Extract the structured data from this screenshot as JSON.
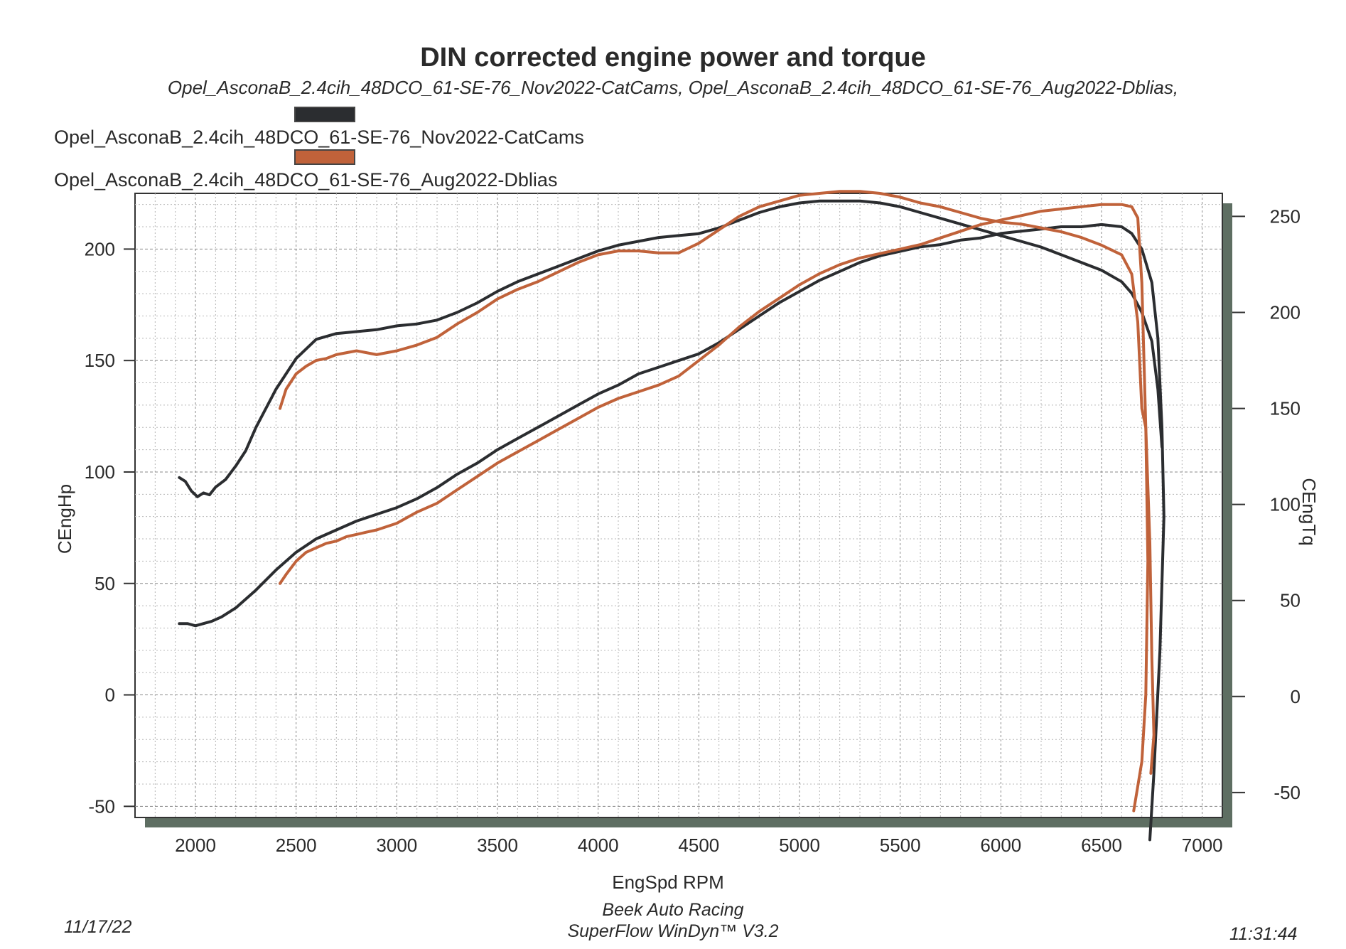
{
  "title": "DIN corrected engine power and torque",
  "subtitle": "Opel_AsconaB_2.4cih_48DCO_61-SE-76_Nov2022-CatCams, Opel_AsconaB_2.4cih_48DCO_61-SE-76_Aug2022-Dblias,",
  "legend": [
    {
      "label": "Opel_AsconaB_2.4cih_48DCO_61-SE-76_Nov2022-CatCams",
      "color": "#2b2d30"
    },
    {
      "label": "Opel_AsconaB_2.4cih_48DCO_61-SE-76_Aug2022-Dblias",
      "color": "#c0623a"
    }
  ],
  "footer": {
    "date": "11/17/22",
    "company": "Beek Auto Racing",
    "software": "SuperFlow WinDyn™ V3.2",
    "time": "11:31:44"
  },
  "chart_data": {
    "type": "line",
    "title": "DIN corrected engine power and torque",
    "xlabel": "EngSpd RPM",
    "ylabel": "CEngHp",
    "y2label": "CEngTq",
    "xlim": [
      1700,
      7100
    ],
    "ylim": [
      -55,
      225
    ],
    "y2lim": [
      -63,
      262
    ],
    "xticks": [
      2000,
      2500,
      3000,
      3500,
      4000,
      4500,
      5000,
      5500,
      6000,
      6500,
      7000
    ],
    "yticks": [
      -50,
      0,
      50,
      100,
      150,
      200
    ],
    "y2ticks": [
      -50,
      0,
      50,
      100,
      150,
      200,
      250
    ],
    "grid": true,
    "series": [
      {
        "name": "Opel_AsconaB_2.4cih_48DCO_61-SE-76_Nov2022-CatCams",
        "quantity": "CEngHp",
        "axis": "left",
        "color": "#2b2d30",
        "points": [
          [
            1920,
            32
          ],
          [
            1960,
            32
          ],
          [
            2000,
            31
          ],
          [
            2040,
            32
          ],
          [
            2080,
            33
          ],
          [
            2130,
            35
          ],
          [
            2200,
            39
          ],
          [
            2300,
            47
          ],
          [
            2400,
            56
          ],
          [
            2500,
            64
          ],
          [
            2600,
            70
          ],
          [
            2700,
            74
          ],
          [
            2800,
            78
          ],
          [
            2900,
            81
          ],
          [
            3000,
            84
          ],
          [
            3100,
            88
          ],
          [
            3200,
            93
          ],
          [
            3300,
            99
          ],
          [
            3400,
            104
          ],
          [
            3500,
            110
          ],
          [
            3600,
            115
          ],
          [
            3700,
            120
          ],
          [
            3800,
            125
          ],
          [
            3900,
            130
          ],
          [
            4000,
            135
          ],
          [
            4100,
            139
          ],
          [
            4200,
            144
          ],
          [
            4300,
            147
          ],
          [
            4400,
            150
          ],
          [
            4500,
            153
          ],
          [
            4600,
            158
          ],
          [
            4700,
            164
          ],
          [
            4800,
            170
          ],
          [
            4900,
            176
          ],
          [
            5000,
            181
          ],
          [
            5100,
            186
          ],
          [
            5200,
            190
          ],
          [
            5300,
            194
          ],
          [
            5400,
            197
          ],
          [
            5500,
            199
          ],
          [
            5600,
            201
          ],
          [
            5700,
            202
          ],
          [
            5800,
            204
          ],
          [
            5900,
            205
          ],
          [
            6000,
            207
          ],
          [
            6100,
            208
          ],
          [
            6200,
            209
          ],
          [
            6300,
            210
          ],
          [
            6400,
            210
          ],
          [
            6500,
            211
          ],
          [
            6600,
            210
          ],
          [
            6650,
            207
          ],
          [
            6700,
            200
          ],
          [
            6750,
            185
          ],
          [
            6780,
            160
          ],
          [
            6800,
            120
          ],
          [
            6810,
            80
          ],
          [
            6790,
            20
          ],
          [
            6760,
            -35
          ],
          [
            6740,
            -65
          ]
        ]
      },
      {
        "name": "Opel_AsconaB_2.4cih_48DCO_61-SE-76_Nov2022-CatCams",
        "quantity": "CEngTq",
        "axis": "right",
        "color": "#2b2d30",
        "points": [
          [
            1920,
            114
          ],
          [
            1950,
            112
          ],
          [
            1980,
            107
          ],
          [
            2010,
            104
          ],
          [
            2040,
            106
          ],
          [
            2070,
            105
          ],
          [
            2100,
            109
          ],
          [
            2150,
            113
          ],
          [
            2200,
            120
          ],
          [
            2250,
            128
          ],
          [
            2300,
            140
          ],
          [
            2400,
            160
          ],
          [
            2500,
            176
          ],
          [
            2600,
            186
          ],
          [
            2700,
            189
          ],
          [
            2800,
            190
          ],
          [
            2900,
            191
          ],
          [
            3000,
            193
          ],
          [
            3100,
            194
          ],
          [
            3200,
            196
          ],
          [
            3300,
            200
          ],
          [
            3400,
            205
          ],
          [
            3500,
            211
          ],
          [
            3600,
            216
          ],
          [
            3700,
            220
          ],
          [
            3800,
            224
          ],
          [
            3900,
            228
          ],
          [
            4000,
            232
          ],
          [
            4100,
            235
          ],
          [
            4200,
            237
          ],
          [
            4300,
            239
          ],
          [
            4400,
            240
          ],
          [
            4500,
            241
          ],
          [
            4600,
            244
          ],
          [
            4700,
            248
          ],
          [
            4800,
            252
          ],
          [
            4900,
            255
          ],
          [
            5000,
            257
          ],
          [
            5100,
            258
          ],
          [
            5200,
            258
          ],
          [
            5300,
            258
          ],
          [
            5400,
            257
          ],
          [
            5500,
            255
          ],
          [
            5600,
            252
          ],
          [
            5700,
            249
          ],
          [
            5800,
            246
          ],
          [
            5900,
            243
          ],
          [
            6000,
            240
          ],
          [
            6100,
            237
          ],
          [
            6200,
            234
          ],
          [
            6300,
            230
          ],
          [
            6400,
            226
          ],
          [
            6500,
            222
          ],
          [
            6600,
            216
          ],
          [
            6650,
            210
          ],
          [
            6700,
            200
          ],
          [
            6750,
            185
          ],
          [
            6780,
            160
          ],
          [
            6800,
            130
          ]
        ]
      },
      {
        "name": "Opel_AsconaB_2.4cih_48DCO_61-SE-76_Aug2022-Dblias",
        "quantity": "CEngHp",
        "axis": "left",
        "color": "#c0623a",
        "points": [
          [
            2420,
            50
          ],
          [
            2450,
            54
          ],
          [
            2500,
            60
          ],
          [
            2550,
            64
          ],
          [
            2600,
            66
          ],
          [
            2650,
            68
          ],
          [
            2700,
            69
          ],
          [
            2750,
            71
          ],
          [
            2800,
            72
          ],
          [
            2850,
            73
          ],
          [
            2900,
            74
          ],
          [
            3000,
            77
          ],
          [
            3100,
            82
          ],
          [
            3200,
            86
          ],
          [
            3300,
            92
          ],
          [
            3400,
            98
          ],
          [
            3500,
            104
          ],
          [
            3600,
            109
          ],
          [
            3700,
            114
          ],
          [
            3800,
            119
          ],
          [
            3900,
            124
          ],
          [
            4000,
            129
          ],
          [
            4100,
            133
          ],
          [
            4200,
            136
          ],
          [
            4300,
            139
          ],
          [
            4400,
            143
          ],
          [
            4500,
            150
          ],
          [
            4600,
            157
          ],
          [
            4700,
            165
          ],
          [
            4800,
            172
          ],
          [
            4900,
            178
          ],
          [
            5000,
            184
          ],
          [
            5100,
            189
          ],
          [
            5200,
            193
          ],
          [
            5300,
            196
          ],
          [
            5400,
            198
          ],
          [
            5500,
            200
          ],
          [
            5600,
            202
          ],
          [
            5700,
            205
          ],
          [
            5800,
            208
          ],
          [
            5900,
            211
          ],
          [
            6000,
            213
          ],
          [
            6100,
            215
          ],
          [
            6200,
            217
          ],
          [
            6300,
            218
          ],
          [
            6400,
            219
          ],
          [
            6500,
            220
          ],
          [
            6600,
            220
          ],
          [
            6650,
            219
          ],
          [
            6680,
            214
          ],
          [
            6700,
            185
          ],
          [
            6720,
            120
          ],
          [
            6730,
            60
          ],
          [
            6720,
            0
          ],
          [
            6700,
            -30
          ],
          [
            6660,
            -52
          ]
        ]
      },
      {
        "name": "Opel_AsconaB_2.4cih_48DCO_61-SE-76_Aug2022-Dblias",
        "quantity": "CEngTq",
        "axis": "right",
        "color": "#c0623a",
        "points": [
          [
            2420,
            150
          ],
          [
            2450,
            160
          ],
          [
            2500,
            168
          ],
          [
            2550,
            172
          ],
          [
            2600,
            175
          ],
          [
            2650,
            176
          ],
          [
            2700,
            178
          ],
          [
            2800,
            180
          ],
          [
            2900,
            178
          ],
          [
            3000,
            180
          ],
          [
            3100,
            183
          ],
          [
            3200,
            187
          ],
          [
            3300,
            194
          ],
          [
            3400,
            200
          ],
          [
            3500,
            207
          ],
          [
            3600,
            212
          ],
          [
            3700,
            216
          ],
          [
            3800,
            221
          ],
          [
            3900,
            226
          ],
          [
            4000,
            230
          ],
          [
            4100,
            232
          ],
          [
            4200,
            232
          ],
          [
            4300,
            231
          ],
          [
            4400,
            231
          ],
          [
            4500,
            236
          ],
          [
            4600,
            243
          ],
          [
            4700,
            250
          ],
          [
            4800,
            255
          ],
          [
            4900,
            258
          ],
          [
            5000,
            261
          ],
          [
            5100,
            262
          ],
          [
            5200,
            263
          ],
          [
            5300,
            263
          ],
          [
            5400,
            262
          ],
          [
            5500,
            260
          ],
          [
            5600,
            257
          ],
          [
            5700,
            255
          ],
          [
            5800,
            252
          ],
          [
            5900,
            249
          ],
          [
            6000,
            247
          ],
          [
            6100,
            246
          ],
          [
            6200,
            244
          ],
          [
            6300,
            242
          ],
          [
            6400,
            239
          ],
          [
            6500,
            235
          ],
          [
            6600,
            230
          ],
          [
            6650,
            220
          ],
          [
            6680,
            195
          ],
          [
            6700,
            150
          ],
          [
            6720,
            140
          ],
          [
            6740,
            80
          ],
          [
            6750,
            20
          ],
          [
            6760,
            -20
          ],
          [
            6745,
            -40
          ]
        ]
      }
    ]
  }
}
